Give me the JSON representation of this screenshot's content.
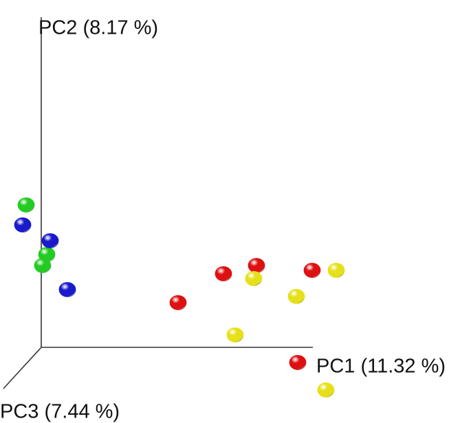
{
  "chart_data": {
    "type": "scatter",
    "x_label": "PC1 (11.32 %)",
    "y_label": "PC2 (8.17 %)",
    "z_label": "PC3 (7.44 %)",
    "xlim": [
      -60,
      625
    ],
    "ylim": [
      -110,
      505
    ],
    "series": [
      {
        "color": "#22cc22",
        "x": [
          -22,
          8,
          2
        ],
        "values": [
          207,
          135,
          119
        ]
      },
      {
        "color": "#1a1acc",
        "x": [
          -27,
          13,
          38
        ],
        "values": [
          178,
          155,
          84
        ]
      },
      {
        "color": "#dd1111",
        "x": [
          199,
          265,
          313,
          394,
          373
        ],
        "values": [
          65,
          107,
          119,
          112,
          -22
        ]
      },
      {
        "color": "#e6e01a",
        "x": [
          309,
          429,
          371,
          282,
          414
        ],
        "values": [
          100,
          112,
          74,
          18,
          -62
        ]
      }
    ]
  }
}
